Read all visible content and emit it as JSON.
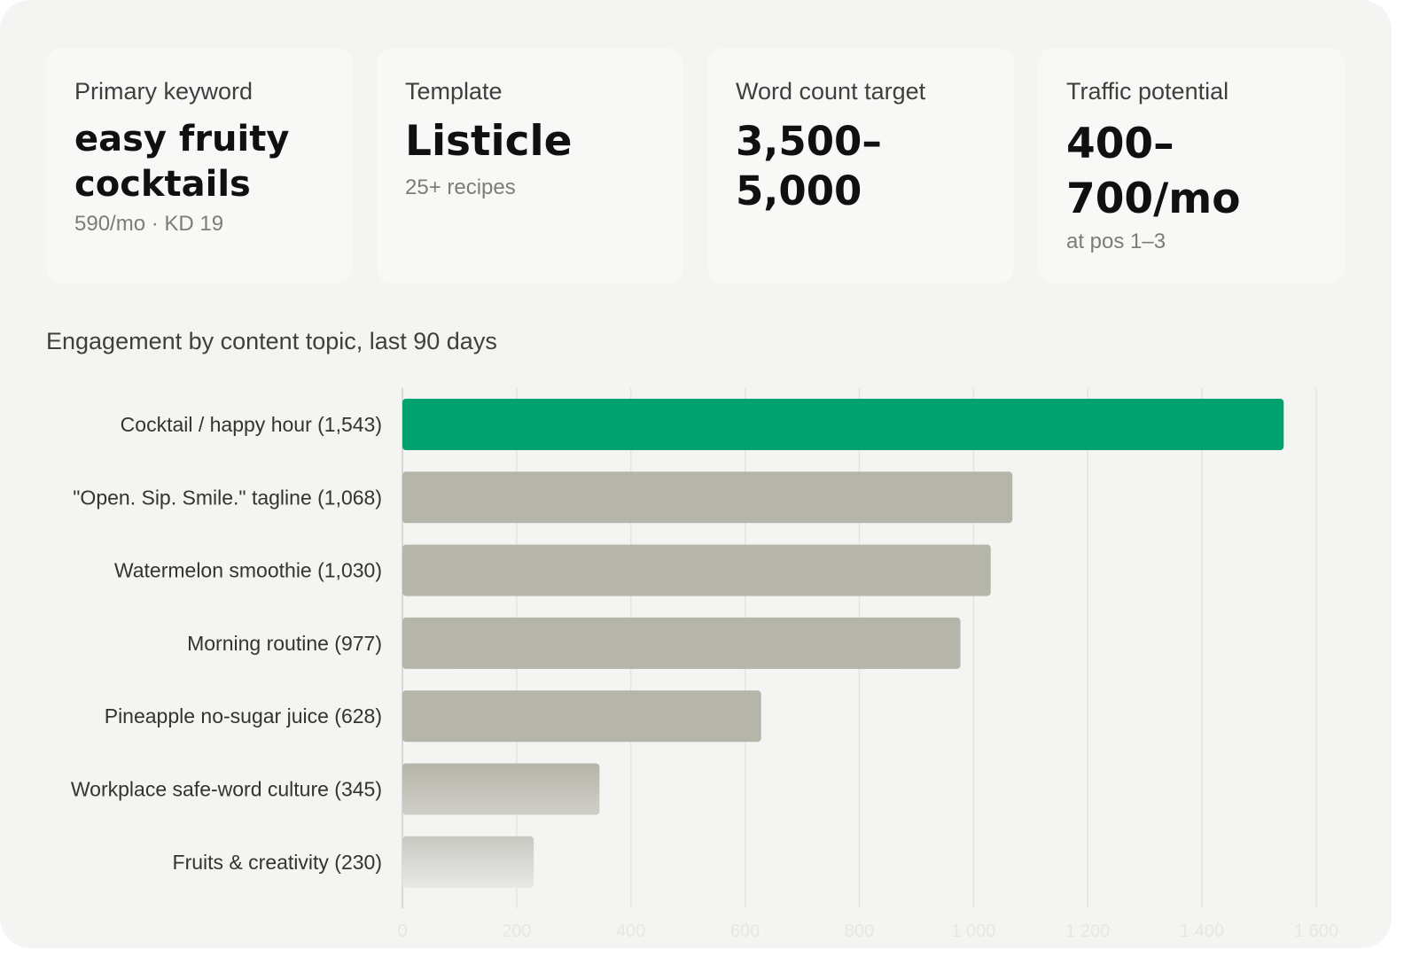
{
  "cards": [
    {
      "label": "Primary keyword",
      "value": "easy fruity\ncocktails",
      "sub": "590/mo · KD 19"
    },
    {
      "label": "Template",
      "value": "Listicle",
      "sub": "25+ recipes"
    },
    {
      "label": "Word count target",
      "value": "3,500–5,000",
      "sub": ""
    },
    {
      "label": "Traffic potential",
      "value": "400–\n700/mo",
      "sub": "at pos 1–3"
    }
  ],
  "colors": {
    "highlight": "#00a26f",
    "bar": "#b6b5a9",
    "grid": "#e3e3df"
  },
  "chart_data": {
    "type": "bar",
    "orientation": "horizontal",
    "title": "Engagement by content topic, last 90 days",
    "categories": [
      "Cocktail / happy hour (1,543)",
      "\"Open. Sip. Smile.\" tagline (1,068)",
      "Watermelon smoothie (1,030)",
      "Morning routine (977)",
      "Pineapple no-sugar juice (628)",
      "Workplace safe-word culture (345)",
      "Fruits & creativity (230)"
    ],
    "values": [
      1543,
      1068,
      1030,
      977,
      628,
      345,
      230
    ],
    "highlight_index": 0,
    "xlim": [
      0,
      1600
    ],
    "xticks": [
      "0",
      "200",
      "400",
      "600",
      "800",
      "1 000",
      "1 200",
      "1 400",
      "1 600"
    ],
    "grid": true,
    "legend": "none"
  }
}
